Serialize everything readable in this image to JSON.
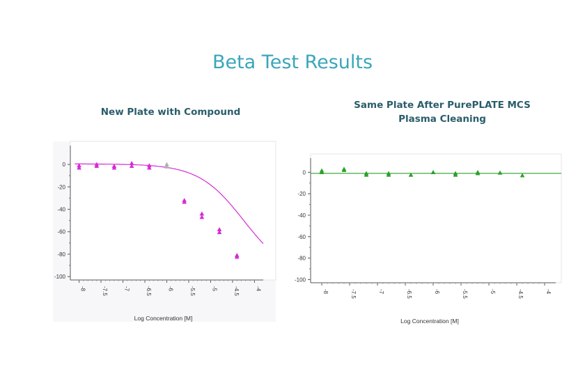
{
  "header": {
    "title": "Beta Test Results"
  },
  "colors": {
    "title": "#3aa6bb",
    "subtitle": "#2a5d6b",
    "chart1": "#d62ad6",
    "chart2": "#2aa02a",
    "chart1_grey": "#b0b0b0"
  },
  "chart_data": [
    {
      "type": "scatter",
      "title": "New Plate with Compound",
      "xlabel": "Log Concentration [M]",
      "ylabel": "",
      "xlim": [
        -8.2,
        -3.8
      ],
      "ylim": [
        -103,
        10
      ],
      "x_ticks": [
        "-8",
        "-7.5",
        "-7",
        "-6.5",
        "-6",
        "-5.5",
        "-5",
        "-4.5",
        "-4"
      ],
      "y_ticks": [
        "0",
        "-20",
        "-40",
        "-60",
        "-80",
        "-100"
      ],
      "grid": false,
      "fit_curve": {
        "type": "sigmoid",
        "top": 0.5,
        "bottom": -100,
        "log_ic50": -4.25,
        "hill_slope": -0.85
      },
      "series": [
        {
          "points": [
            {
              "x": -8,
              "y": -1
            },
            {
              "x": -8,
              "y": -3
            },
            {
              "x": -7.6,
              "y": 0
            },
            {
              "x": -7.6,
              "y": -1.5
            },
            {
              "x": -7.2,
              "y": -1.5
            },
            {
              "x": -7.2,
              "y": -3
            },
            {
              "x": -6.8,
              "y": 1
            },
            {
              "x": -6.8,
              "y": -1.5
            },
            {
              "x": -6.4,
              "y": -1
            },
            {
              "x": -6.4,
              "y": -3
            },
            {
              "x": -5.6,
              "y": -32
            },
            {
              "x": -5.6,
              "y": -33.5
            },
            {
              "x": -5.2,
              "y": -44
            },
            {
              "x": -5.2,
              "y": -47
            },
            {
              "x": -4.8,
              "y": -58
            },
            {
              "x": -4.8,
              "y": -60.5
            },
            {
              "x": -4.4,
              "y": -81
            },
            {
              "x": -4.4,
              "y": -82.5
            }
          ],
          "excluded_points": [
            {
              "x": -6.0,
              "y": 0
            },
            {
              "x": -6.0,
              "y": -2
            }
          ]
        }
      ]
    },
    {
      "type": "scatter",
      "title": "Same Plate After PurePLATE MCS Plasma Cleaning",
      "xlabel": "Log Concentration [M]",
      "ylabel": "",
      "xlim": [
        -8.2,
        -3.8
      ],
      "ylim": [
        -103,
        10
      ],
      "x_ticks": [
        "-8",
        "-7.5",
        "-7",
        "-6.5",
        "-6",
        "-5.5",
        "-5",
        "-4.5",
        "-4"
      ],
      "y_ticks": [
        "0",
        "-20",
        "-40",
        "-60",
        "-80",
        "-100"
      ],
      "grid": false,
      "fit_line": {
        "y": -1
      },
      "series": [
        {
          "points": [
            {
              "x": -8,
              "y": 1.5
            },
            {
              "x": -8,
              "y": 0
            },
            {
              "x": -7.6,
              "y": 3
            },
            {
              "x": -7.6,
              "y": 2
            },
            {
              "x": -7.2,
              "y": -1
            },
            {
              "x": -7.2,
              "y": -2.5
            },
            {
              "x": -6.8,
              "y": -1
            },
            {
              "x": -6.8,
              "y": -2.5
            },
            {
              "x": -6.4,
              "y": -2.5
            },
            {
              "x": -6.0,
              "y": 0
            },
            {
              "x": -5.6,
              "y": -1
            },
            {
              "x": -5.6,
              "y": -2.5
            },
            {
              "x": -5.2,
              "y": 0
            },
            {
              "x": -5.2,
              "y": -1
            },
            {
              "x": -4.8,
              "y": -0.5
            },
            {
              "x": -4.4,
              "y": -3
            }
          ]
        }
      ]
    }
  ]
}
